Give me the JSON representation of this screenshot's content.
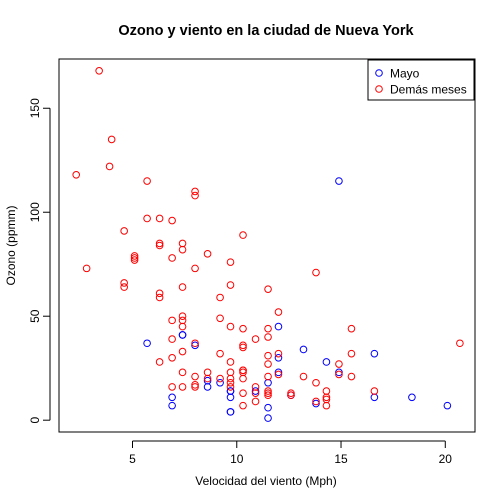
{
  "chart_data": {
    "type": "scatter",
    "title": "Ozono y viento en la ciudad de Nueva York",
    "xlabel": "Velocidad del viento (Mph)",
    "ylabel": "Ozono (ppmm)",
    "xlim": [
      1.475,
      21.425
    ],
    "ylim": [
      -5.68,
      173.68
    ],
    "xticks": [
      5,
      10,
      15,
      20
    ],
    "yticks": [
      0,
      50,
      100,
      150
    ],
    "grid": false,
    "legend_position": "top-right",
    "series": [
      {
        "name": "Mayo",
        "color": "#0000FF",
        "marker": "open-circle",
        "points": [
          [
            7.4,
            41
          ],
          [
            8.0,
            36
          ],
          [
            12.6,
            12
          ],
          [
            11.5,
            18
          ],
          [
            14.3,
            28
          ],
          [
            14.9,
            23
          ],
          [
            8.6,
            19
          ],
          [
            13.8,
            8
          ],
          [
            20.1,
            7
          ],
          [
            8.6,
            16
          ],
          [
            6.9,
            11
          ],
          [
            9.7,
            14
          ],
          [
            9.2,
            18
          ],
          [
            10.9,
            14
          ],
          [
            13.2,
            34
          ],
          [
            11.5,
            6
          ],
          [
            12.0,
            30
          ],
          [
            18.4,
            11
          ],
          [
            11.5,
            1
          ],
          [
            9.7,
            11
          ],
          [
            9.7,
            4
          ],
          [
            16.6,
            32
          ],
          [
            9.7,
            4
          ],
          [
            12.0,
            23
          ],
          [
            12.0,
            45
          ],
          [
            14.9,
            115
          ],
          [
            5.7,
            37
          ],
          [
            7.4,
            41
          ],
          [
            9.7,
            14
          ],
          [
            16.6,
            11
          ],
          [
            6.9,
            7
          ]
        ]
      },
      {
        "name": "Demás meses",
        "color": "#FF0000",
        "marker": "open-circle",
        "points": [
          [
            3.4,
            168
          ],
          [
            4.0,
            135
          ],
          [
            3.9,
            122
          ],
          [
            2.3,
            118
          ],
          [
            5.7,
            115
          ],
          [
            8.0,
            110
          ],
          [
            8.0,
            108
          ],
          [
            5.7,
            97
          ],
          [
            6.3,
            97
          ],
          [
            6.9,
            96
          ],
          [
            4.6,
            91
          ],
          [
            10.3,
            89
          ],
          [
            7.4,
            85
          ],
          [
            6.3,
            85
          ],
          [
            6.3,
            84
          ],
          [
            7.4,
            82
          ],
          [
            8.6,
            80
          ],
          [
            5.1,
            79
          ],
          [
            5.1,
            78
          ],
          [
            5.1,
            77
          ],
          [
            6.9,
            78
          ],
          [
            9.7,
            76
          ],
          [
            2.8,
            73
          ],
          [
            8.0,
            73
          ],
          [
            13.8,
            71
          ],
          [
            4.6,
            66
          ],
          [
            4.6,
            64
          ],
          [
            9.7,
            65
          ],
          [
            7.4,
            64
          ],
          [
            11.5,
            63
          ],
          [
            6.3,
            61
          ],
          [
            6.3,
            59
          ],
          [
            9.2,
            59
          ],
          [
            12.0,
            52
          ],
          [
            7.4,
            50
          ],
          [
            7.4,
            48
          ],
          [
            6.9,
            48
          ],
          [
            9.2,
            49
          ],
          [
            9.7,
            45
          ],
          [
            15.5,
            44
          ],
          [
            10.3,
            44
          ],
          [
            11.5,
            44
          ],
          [
            7.4,
            45
          ],
          [
            11.5,
            40
          ],
          [
            10.9,
            39
          ],
          [
            6.9,
            39
          ],
          [
            8.0,
            37
          ],
          [
            10.3,
            35
          ],
          [
            10.3,
            36
          ],
          [
            12.0,
            32
          ],
          [
            9.2,
            32
          ],
          [
            11.5,
            31
          ],
          [
            7.4,
            33
          ],
          [
            15.5,
            32
          ],
          [
            20.7,
            37
          ],
          [
            6.3,
            28
          ],
          [
            6.9,
            30
          ],
          [
            9.7,
            28
          ],
          [
            14.9,
            27
          ],
          [
            11.5,
            27
          ],
          [
            12.0,
            22
          ],
          [
            9.7,
            23
          ],
          [
            7.4,
            23
          ],
          [
            10.3,
            24
          ],
          [
            10.3,
            23
          ],
          [
            8.0,
            21
          ],
          [
            10.3,
            20
          ],
          [
            13.2,
            21
          ],
          [
            8.6,
            20
          ],
          [
            9.2,
            20
          ],
          [
            11.5,
            21
          ],
          [
            14.9,
            22
          ],
          [
            15.5,
            21
          ],
          [
            13.8,
            18
          ],
          [
            8.0,
            16
          ],
          [
            10.9,
            16
          ],
          [
            9.7,
            18
          ],
          [
            6.9,
            16
          ],
          [
            8.0,
            17
          ],
          [
            9.7,
            16
          ],
          [
            7.4,
            16
          ],
          [
            10.3,
            13
          ],
          [
            10.9,
            13
          ],
          [
            12.6,
            12
          ],
          [
            11.5,
            14
          ],
          [
            14.3,
            14
          ],
          [
            14.3,
            11
          ],
          [
            13.8,
            9
          ],
          [
            16.6,
            14
          ],
          [
            10.9,
            9
          ],
          [
            10.3,
            7
          ],
          [
            11.5,
            12
          ],
          [
            11.5,
            13
          ],
          [
            14.3,
            10
          ],
          [
            14.3,
            7
          ],
          [
            9.7,
            20
          ],
          [
            8.6,
            23
          ],
          [
            10.3,
            24
          ],
          [
            12.6,
            13
          ]
        ]
      }
    ]
  }
}
